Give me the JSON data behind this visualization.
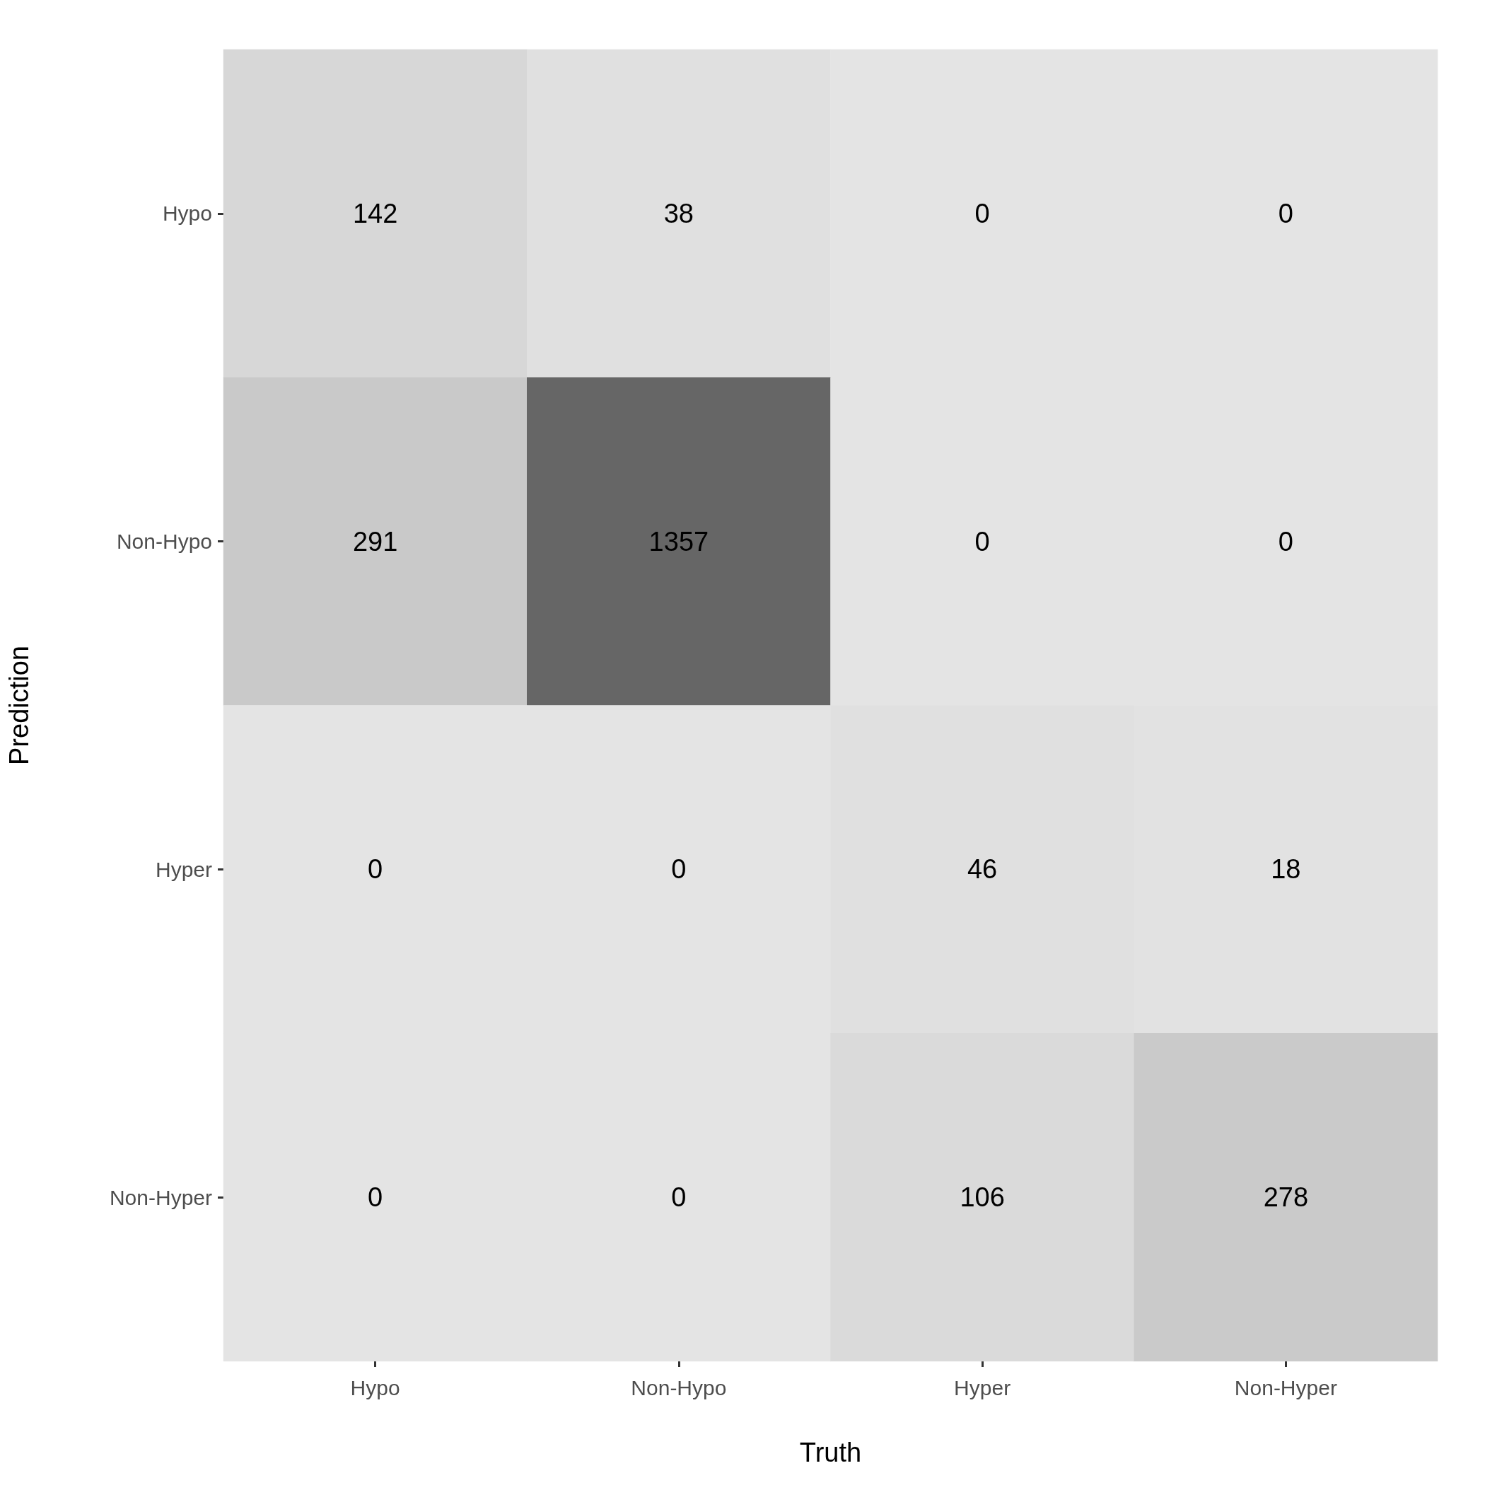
{
  "chart_data": {
    "type": "heatmap",
    "xlabel": "Truth",
    "ylabel": "Prediction",
    "categories": [
      "Hypo",
      "Non-Hypo",
      "Hyper",
      "Non-Hyper"
    ],
    "y_categories": [
      "Hypo",
      "Non-Hypo",
      "Hyper",
      "Non-Hyper"
    ],
    "cells": [
      [
        142,
        38,
        0,
        0
      ],
      [
        291,
        1357,
        0,
        0
      ],
      [
        0,
        0,
        46,
        18
      ],
      [
        0,
        0,
        106,
        278
      ]
    ],
    "data_labels": true
  }
}
